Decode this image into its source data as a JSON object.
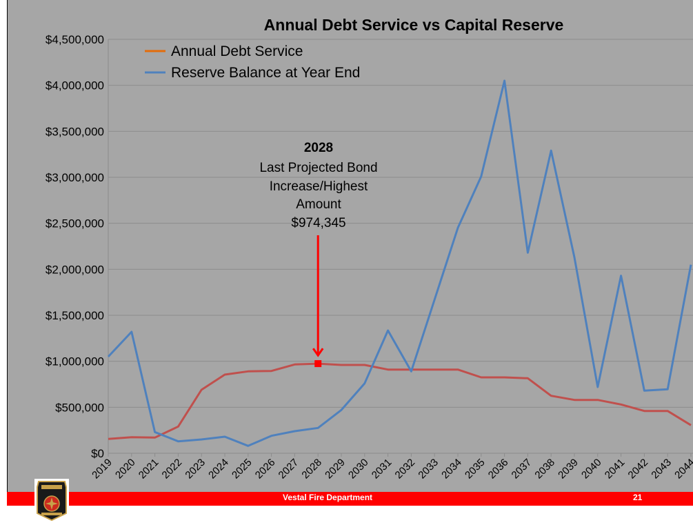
{
  "slide": {
    "footer_text": "Vestal Fire Department",
    "page_number": "21",
    "logo_icon": "vestal-fire-badge-icon"
  },
  "chart_data": {
    "type": "line",
    "title": "Annual Debt Service vs Capital Reserve",
    "xlabel": "",
    "ylabel": "",
    "categories": [
      "2019",
      "2020",
      "2021",
      "2022",
      "2023",
      "2024",
      "2025",
      "2026",
      "2027",
      "2028",
      "2029",
      "2030",
      "2031",
      "2032",
      "2033",
      "2034",
      "2035",
      "2036",
      "2037",
      "2038",
      "2039",
      "2040",
      "2041",
      "2042",
      "2043",
      "2044"
    ],
    "ylim": [
      0,
      4500000
    ],
    "y_ticks": [
      "$0",
      "$500,000",
      "$1,000,000",
      "$1,500,000",
      "$2,000,000",
      "$2,500,000",
      "$3,000,000",
      "$3,500,000",
      "$4,000,000",
      "$4,500,000"
    ],
    "grid": true,
    "legend_position": "top-left",
    "series": [
      {
        "name": "Annual Debt Service",
        "legend_color": "#e46c0a",
        "color": "#c0504d",
        "values": [
          155000,
          175000,
          170000,
          290000,
          690000,
          855000,
          890000,
          895000,
          965000,
          974345,
          960000,
          960000,
          910000,
          910000,
          910000,
          910000,
          825000,
          825000,
          815000,
          625000,
          580000,
          580000,
          530000,
          460000,
          460000,
          305000
        ]
      },
      {
        "name": "Reserve Balance at Year End",
        "legend_color": "#4f81bd",
        "color": "#4f81bd",
        "values": [
          1050000,
          1320000,
          230000,
          130000,
          150000,
          180000,
          80000,
          190000,
          240000,
          275000,
          470000,
          760000,
          1335000,
          890000,
          1670000,
          2450000,
          3010000,
          4050000,
          2180000,
          3290000,
          2130000,
          720000,
          1930000,
          680000,
          695000,
          2050000
        ]
      }
    ],
    "annotation": {
      "year": "2028",
      "lines": [
        "Last Projected Bond",
        "Increase/Highest",
        "Amount",
        "$974,345"
      ],
      "x": "2028",
      "y": 974345,
      "color": "#ff0000"
    }
  }
}
